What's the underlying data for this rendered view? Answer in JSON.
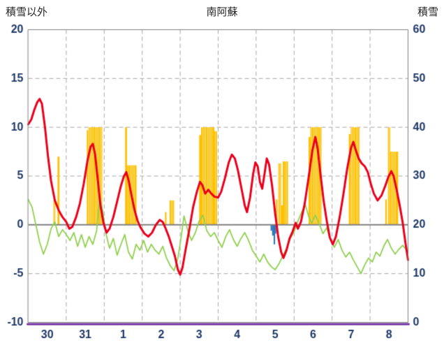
{
  "palette": {
    "background": "#ffffff",
    "red_line": "#e8001c",
    "green_line": "#92d050",
    "orange_bar": "#ffc000",
    "blue_bar": "#2e75b6",
    "grid": "#a6a6a6",
    "zero_line": "#7f7f7f",
    "border": "#808080",
    "baseline": "#7030a0",
    "tick_text": "#1f3864",
    "header_text": "#262626"
  },
  "chart_data": {
    "type": "line",
    "title": "南阿蘇",
    "left_axis": {
      "label": "積雪以外",
      "min": -10,
      "max": 20,
      "ticks": [
        20,
        15,
        10,
        5,
        0,
        -5,
        -10
      ]
    },
    "right_axis": {
      "label": "積雪",
      "min": 0,
      "max": 60,
      "ticks": [
        60,
        50,
        40,
        30,
        20,
        10,
        0
      ]
    },
    "x_axis": {
      "labels": [
        "30",
        "31",
        "1",
        "2",
        "3",
        "4",
        "5",
        "6",
        "7",
        "8"
      ]
    },
    "grid": {
      "horizontal": "dashed",
      "vertical": "dashed",
      "zero_line": "solid"
    },
    "series": [
      {
        "name": "orange-bars",
        "kind": "bar",
        "color_key": "orange_bar",
        "bars": [
          [
            0.66,
            0.71,
            2.5
          ],
          [
            0.77,
            0.82,
            7.0
          ],
          [
            1.54,
            1.58,
            9.7
          ],
          [
            1.58,
            1.95,
            10
          ],
          [
            2.55,
            2.6,
            10
          ],
          [
            2.6,
            2.85,
            6.1
          ],
          [
            3.6,
            3.64,
            1.3
          ],
          [
            3.72,
            3.84,
            2.5
          ],
          [
            4.5,
            4.55,
            9.2
          ],
          [
            4.55,
            4.9,
            10
          ],
          [
            4.9,
            4.97,
            9.6
          ],
          [
            6.52,
            6.56,
            2.6
          ],
          [
            6.58,
            6.66,
            6.3
          ],
          [
            6.66,
            6.7,
            2.0
          ],
          [
            6.7,
            6.84,
            6.5
          ],
          [
            7.38,
            7.43,
            9.0
          ],
          [
            7.43,
            7.72,
            10
          ],
          [
            8.44,
            8.49,
            9.3
          ],
          [
            8.49,
            8.72,
            10
          ],
          [
            9.4,
            9.44,
            2.6
          ],
          [
            9.47,
            9.53,
            10
          ],
          [
            9.53,
            9.74,
            7.5
          ]
        ]
      },
      {
        "name": "blue-bars",
        "kind": "bar",
        "color_key": "blue_bar",
        "bars": [
          [
            6.38,
            6.42,
            -0.6
          ],
          [
            6.42,
            6.46,
            -1.1
          ],
          [
            6.46,
            6.5,
            -2.0
          ],
          [
            6.5,
            6.53,
            -0.9
          ]
        ]
      },
      {
        "name": "green-line",
        "kind": "line",
        "color_key": "green_line",
        "width": 1.8,
        "points": [
          [
            0.0,
            2.6
          ],
          [
            0.1,
            1.8
          ],
          [
            0.2,
            0.0
          ],
          [
            0.3,
            -1.8
          ],
          [
            0.4,
            -3.0
          ],
          [
            0.5,
            -2.0
          ],
          [
            0.6,
            -0.4
          ],
          [
            0.7,
            0.3
          ],
          [
            0.8,
            -1.2
          ],
          [
            0.9,
            -0.5
          ],
          [
            1.0,
            -1.0
          ],
          [
            1.1,
            -1.6
          ],
          [
            1.2,
            -0.8
          ],
          [
            1.3,
            -2.2
          ],
          [
            1.4,
            -1.0
          ],
          [
            1.5,
            -2.3
          ],
          [
            1.6,
            -1.2
          ],
          [
            1.7,
            -2.0
          ],
          [
            1.8,
            -0.6
          ],
          [
            1.88,
            2.9
          ],
          [
            1.96,
            1.4
          ],
          [
            2.04,
            -0.8
          ],
          [
            2.14,
            -2.4
          ],
          [
            2.24,
            -1.4
          ],
          [
            2.34,
            -3.1
          ],
          [
            2.44,
            -2.0
          ],
          [
            2.54,
            -1.0
          ],
          [
            2.64,
            -2.8
          ],
          [
            2.74,
            -3.5
          ],
          [
            2.84,
            -2.0
          ],
          [
            2.94,
            -2.6
          ],
          [
            3.04,
            -1.6
          ],
          [
            3.14,
            -2.8
          ],
          [
            3.24,
            -2.0
          ],
          [
            3.34,
            -2.6
          ],
          [
            3.44,
            -3.0
          ],
          [
            3.54,
            -2.2
          ],
          [
            3.64,
            -3.4
          ],
          [
            3.74,
            -4.2
          ],
          [
            3.84,
            -4.7
          ],
          [
            3.94,
            -3.4
          ],
          [
            4.02,
            -1.4
          ],
          [
            4.1,
            0.9
          ],
          [
            4.2,
            -0.6
          ],
          [
            4.3,
            -1.6
          ],
          [
            4.4,
            -0.8
          ],
          [
            4.5,
            0.4
          ],
          [
            4.6,
            1.0
          ],
          [
            4.7,
            -0.6
          ],
          [
            4.8,
            -1.2
          ],
          [
            4.9,
            -0.8
          ],
          [
            5.0,
            -1.6
          ],
          [
            5.1,
            -2.3
          ],
          [
            5.2,
            -1.2
          ],
          [
            5.3,
            -0.5
          ],
          [
            5.4,
            -1.5
          ],
          [
            5.5,
            -2.2
          ],
          [
            5.6,
            -1.4
          ],
          [
            5.7,
            -0.8
          ],
          [
            5.8,
            -1.6
          ],
          [
            5.9,
            -2.6
          ],
          [
            6.0,
            -3.2
          ],
          [
            6.1,
            -3.8
          ],
          [
            6.2,
            -3.0
          ],
          [
            6.3,
            -3.8
          ],
          [
            6.4,
            -4.3
          ],
          [
            6.5,
            -4.6
          ],
          [
            6.6,
            -4.0
          ],
          [
            6.7,
            -3.2
          ],
          [
            6.8,
            -2.4
          ],
          [
            6.9,
            -1.4
          ],
          [
            7.0,
            -0.7
          ],
          [
            7.1,
            0.4
          ],
          [
            7.2,
            1.3
          ],
          [
            7.3,
            2.0
          ],
          [
            7.38,
            0.9
          ],
          [
            7.46,
            0.2
          ],
          [
            7.56,
            1.0
          ],
          [
            7.66,
            0.1
          ],
          [
            7.76,
            -0.9
          ],
          [
            7.86,
            -0.3
          ],
          [
            7.96,
            -1.6
          ],
          [
            8.06,
            -2.3
          ],
          [
            8.16,
            -1.5
          ],
          [
            8.26,
            -2.6
          ],
          [
            8.36,
            -3.3
          ],
          [
            8.46,
            -2.8
          ],
          [
            8.56,
            -3.6
          ],
          [
            8.66,
            -4.3
          ],
          [
            8.76,
            -5.0
          ],
          [
            8.86,
            -4.1
          ],
          [
            8.96,
            -3.4
          ],
          [
            9.06,
            -3.8
          ],
          [
            9.16,
            -2.8
          ],
          [
            9.26,
            -3.2
          ],
          [
            9.36,
            -2.2
          ],
          [
            9.46,
            -1.5
          ],
          [
            9.56,
            -2.4
          ],
          [
            9.66,
            -3.0
          ],
          [
            9.76,
            -2.5
          ],
          [
            9.86,
            -2.1
          ],
          [
            9.96,
            -2.6
          ]
        ]
      },
      {
        "name": "red-line",
        "kind": "line",
        "color_key": "red_line",
        "width": 3,
        "points": [
          [
            0.0,
            10.3
          ],
          [
            0.08,
            10.8
          ],
          [
            0.16,
            11.8
          ],
          [
            0.24,
            12.6
          ],
          [
            0.3,
            12.9
          ],
          [
            0.36,
            12.4
          ],
          [
            0.44,
            10.0
          ],
          [
            0.52,
            7.0
          ],
          [
            0.6,
            4.5
          ],
          [
            0.7,
            2.5
          ],
          [
            0.8,
            1.5
          ],
          [
            0.9,
            0.8
          ],
          [
            1.0,
            0.3
          ],
          [
            1.08,
            -0.4
          ],
          [
            1.16,
            -0.2
          ],
          [
            1.26,
            0.8
          ],
          [
            1.36,
            2.2
          ],
          [
            1.46,
            4.2
          ],
          [
            1.56,
            6.6
          ],
          [
            1.64,
            8.0
          ],
          [
            1.7,
            8.3
          ],
          [
            1.76,
            7.2
          ],
          [
            1.82,
            5.0
          ],
          [
            1.9,
            2.0
          ],
          [
            1.98,
            0.2
          ],
          [
            2.06,
            -0.8
          ],
          [
            2.14,
            -0.4
          ],
          [
            2.24,
            0.8
          ],
          [
            2.34,
            2.4
          ],
          [
            2.44,
            4.0
          ],
          [
            2.52,
            5.0
          ],
          [
            2.58,
            5.4
          ],
          [
            2.64,
            4.6
          ],
          [
            2.72,
            3.0
          ],
          [
            2.8,
            1.5
          ],
          [
            2.88,
            0.4
          ],
          [
            2.96,
            -0.3
          ],
          [
            3.06,
            -0.9
          ],
          [
            3.16,
            -1.2
          ],
          [
            3.26,
            -0.8
          ],
          [
            3.36,
            0.0
          ],
          [
            3.46,
            0.5
          ],
          [
            3.54,
            0.3
          ],
          [
            3.62,
            -0.4
          ],
          [
            3.7,
            -1.2
          ],
          [
            3.78,
            -2.2
          ],
          [
            3.86,
            -3.2
          ],
          [
            3.94,
            -4.6
          ],
          [
            4.0,
            -5.1
          ],
          [
            4.06,
            -4.4
          ],
          [
            4.14,
            -2.6
          ],
          [
            4.24,
            -0.5
          ],
          [
            4.34,
            1.8
          ],
          [
            4.44,
            3.4
          ],
          [
            4.52,
            4.4
          ],
          [
            4.58,
            4.1
          ],
          [
            4.66,
            3.2
          ],
          [
            4.74,
            3.6
          ],
          [
            4.82,
            3.2
          ],
          [
            4.9,
            2.9
          ],
          [
            5.0,
            2.8
          ],
          [
            5.08,
            3.4
          ],
          [
            5.18,
            4.8
          ],
          [
            5.28,
            6.4
          ],
          [
            5.36,
            7.2
          ],
          [
            5.44,
            6.8
          ],
          [
            5.52,
            5.6
          ],
          [
            5.62,
            3.6
          ],
          [
            5.7,
            2.0
          ],
          [
            5.76,
            1.3
          ],
          [
            5.84,
            2.8
          ],
          [
            5.92,
            5.2
          ],
          [
            5.98,
            6.4
          ],
          [
            6.04,
            6.0
          ],
          [
            6.1,
            4.4
          ],
          [
            6.16,
            3.7
          ],
          [
            6.22,
            5.2
          ],
          [
            6.28,
            6.8
          ],
          [
            6.34,
            6.2
          ],
          [
            6.42,
            4.0
          ],
          [
            6.5,
            1.2
          ],
          [
            6.58,
            -1.2
          ],
          [
            6.66,
            -2.8
          ],
          [
            6.72,
            -3.4
          ],
          [
            6.8,
            -2.6
          ],
          [
            6.88,
            -1.4
          ],
          [
            6.96,
            -0.7
          ],
          [
            7.04,
            0.2
          ],
          [
            7.1,
            -0.4
          ],
          [
            7.18,
            0.3
          ],
          [
            7.28,
            2.2
          ],
          [
            7.38,
            4.8
          ],
          [
            7.48,
            7.6
          ],
          [
            7.56,
            9.0
          ],
          [
            7.62,
            7.8
          ],
          [
            7.7,
            5.0
          ],
          [
            7.78,
            2.4
          ],
          [
            7.86,
            0.4
          ],
          [
            7.94,
            -1.3
          ],
          [
            8.02,
            -2.0
          ],
          [
            8.1,
            -1.2
          ],
          [
            8.2,
            0.8
          ],
          [
            8.3,
            3.2
          ],
          [
            8.4,
            5.8
          ],
          [
            8.5,
            7.9
          ],
          [
            8.56,
            8.5
          ],
          [
            8.62,
            7.7
          ],
          [
            8.7,
            6.8
          ],
          [
            8.78,
            6.3
          ],
          [
            8.86,
            6.0
          ],
          [
            8.94,
            5.4
          ],
          [
            9.02,
            4.2
          ],
          [
            9.1,
            3.2
          ],
          [
            9.2,
            2.5
          ],
          [
            9.3,
            3.0
          ],
          [
            9.4,
            4.0
          ],
          [
            9.48,
            4.9
          ],
          [
            9.56,
            5.5
          ],
          [
            9.62,
            5.0
          ],
          [
            9.7,
            3.6
          ],
          [
            9.78,
            2.0
          ],
          [
            9.86,
            0.2
          ],
          [
            9.93,
            -1.8
          ],
          [
            10.0,
            -3.6
          ]
        ]
      }
    ]
  }
}
